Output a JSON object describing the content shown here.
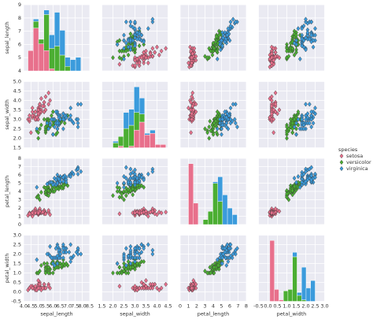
{
  "chart_data": {
    "type": "pairplot",
    "legend_title": "species",
    "variables": [
      {
        "name": "sepal_length",
        "xlim": [
          4,
          8.5
        ],
        "xticks": [
          {
            "value": 4,
            "label": "4.0"
          },
          4.5,
          {
            "value": 5,
            "label": "5.0"
          },
          5.5,
          {
            "value": 6,
            "label": "6.0"
          },
          6.5,
          {
            "value": 7,
            "label": "7.0"
          },
          7.5,
          {
            "value": 8,
            "label": "8.0"
          },
          8.5
        ],
        "ylim": [
          4,
          9
        ],
        "yticks": [
          4,
          5,
          6,
          7,
          8,
          9
        ],
        "bins": [
          4.3,
          4.66,
          5.02,
          5.38,
          5.74,
          6.1,
          6.46,
          6.82,
          7.18,
          7.54,
          7.9
        ]
      },
      {
        "name": "sepal_width",
        "xlim": [
          1.5,
          4.5
        ],
        "xticks": [
          1.5,
          {
            "value": 2,
            "label": "2.0"
          },
          2.5,
          {
            "value": 3,
            "label": "3.0"
          },
          3.5,
          {
            "value": 4,
            "label": "4.0"
          },
          4.5
        ],
        "ylim": [
          1.5,
          5
        ],
        "yticks": [
          1.5,
          {
            "value": 2,
            "label": "2.0"
          },
          2.5,
          {
            "value": 3,
            "label": "3.0"
          },
          3.5,
          {
            "value": 4,
            "label": "4.0"
          },
          4.5,
          {
            "value": 5,
            "label": "5.0"
          }
        ],
        "bins": [
          2.0,
          2.24,
          2.48,
          2.72,
          2.96,
          3.2,
          3.44,
          3.68,
          3.92,
          4.16,
          4.4
        ]
      },
      {
        "name": "petal_length",
        "xlim": [
          0,
          8
        ],
        "xticks": [
          0,
          1,
          2,
          3,
          4,
          5,
          6,
          7,
          8
        ],
        "ylim": [
          0,
          8
        ],
        "yticks": [
          0,
          1,
          2,
          3,
          4,
          5,
          6,
          7,
          8
        ],
        "bins": [
          1.0,
          1.59,
          2.18,
          2.77,
          3.36,
          3.95,
          4.54,
          5.13,
          5.72,
          6.31,
          6.9
        ]
      },
      {
        "name": "petal_width",
        "xlim": [
          -0.5,
          3
        ],
        "xticks": [
          -0.5,
          {
            "value": 0,
            "label": "0.0"
          },
          0.5,
          {
            "value": 1,
            "label": "1.0"
          },
          1.5,
          {
            "value": 2,
            "label": "2.0"
          },
          2.5,
          {
            "value": 3,
            "label": "3.0"
          }
        ],
        "ylim": [
          -0.5,
          3
        ],
        "yticks": [
          -0.5,
          {
            "value": 0,
            "label": "0.0"
          },
          0.5,
          {
            "value": 1,
            "label": "1.0"
          },
          1.5,
          {
            "value": 2,
            "label": "2.0"
          },
          2.5,
          {
            "value": 3,
            "label": "3.0"
          }
        ],
        "bins": [
          0.1,
          0.34,
          0.58,
          0.82,
          1.06,
          1.3,
          1.54,
          1.78,
          2.02,
          2.26,
          2.5
        ]
      }
    ],
    "series": [
      {
        "name": "setosa",
        "color": "#e8708c",
        "values": [
          [
            5.1,
            4.9,
            4.7,
            4.6,
            5.0,
            5.4,
            4.6,
            5.0,
            4.4,
            4.9,
            5.4,
            4.8,
            4.8,
            4.3,
            5.8,
            5.7,
            5.4,
            5.1,
            5.7,
            5.1,
            5.4,
            5.1,
            4.6,
            5.1,
            4.8,
            5.0,
            5.0,
            5.2,
            5.2,
            4.7,
            4.8,
            5.4,
            5.2,
            5.5,
            4.9,
            5.0,
            5.5,
            4.9,
            4.4,
            5.1,
            5.0,
            4.5,
            4.4,
            5.0,
            5.1,
            4.8,
            5.1,
            4.6,
            5.3,
            5.0
          ],
          [
            3.5,
            3.0,
            3.2,
            3.1,
            3.6,
            3.9,
            3.4,
            3.4,
            2.9,
            3.1,
            3.7,
            3.4,
            3.0,
            3.0,
            4.0,
            4.4,
            3.9,
            3.5,
            3.8,
            3.8,
            3.4,
            3.7,
            3.6,
            3.3,
            3.4,
            3.0,
            3.4,
            3.5,
            3.4,
            3.2,
            3.1,
            3.4,
            4.1,
            4.2,
            3.1,
            3.2,
            3.5,
            3.1,
            3.0,
            3.4,
            3.5,
            2.3,
            3.2,
            3.5,
            3.8,
            3.0,
            3.8,
            3.2,
            3.7,
            3.3
          ],
          [
            1.4,
            1.4,
            1.3,
            1.5,
            1.4,
            1.7,
            1.4,
            1.5,
            1.4,
            1.5,
            1.5,
            1.6,
            1.4,
            1.1,
            1.2,
            1.5,
            1.3,
            1.4,
            1.7,
            1.5,
            1.7,
            1.5,
            1.0,
            1.7,
            1.9,
            1.6,
            1.6,
            1.5,
            1.4,
            1.6,
            1.6,
            1.5,
            1.5,
            1.4,
            1.5,
            1.2,
            1.3,
            1.5,
            1.3,
            1.5,
            1.3,
            1.3,
            1.3,
            1.6,
            1.9,
            1.4,
            1.6,
            1.4,
            1.5,
            1.4
          ],
          [
            0.2,
            0.2,
            0.2,
            0.2,
            0.2,
            0.4,
            0.3,
            0.2,
            0.2,
            0.1,
            0.2,
            0.2,
            0.1,
            0.1,
            0.2,
            0.4,
            0.4,
            0.3,
            0.3,
            0.3,
            0.2,
            0.4,
            0.2,
            0.5,
            0.2,
            0.2,
            0.4,
            0.2,
            0.2,
            0.2,
            0.2,
            0.4,
            0.1,
            0.2,
            0.1,
            0.2,
            0.2,
            0.1,
            0.2,
            0.2,
            0.3,
            0.3,
            0.2,
            0.6,
            0.4,
            0.3,
            0.2,
            0.2,
            0.2,
            0.2
          ]
        ],
        "hist": [
          [
            9,
            19,
            12,
            9,
            1,
            0,
            0,
            0,
            0,
            0
          ],
          [
            0,
            1,
            0,
            1,
            11,
            16,
            8,
            9,
            2,
            2
          ],
          [
            37,
            13,
            0,
            0,
            0,
            0,
            0,
            0,
            0,
            0
          ],
          [
            41,
            8,
            1,
            0,
            0,
            0,
            0,
            0,
            0,
            0
          ]
        ]
      },
      {
        "name": "versicolor",
        "color": "#4bae32",
        "values": [
          [
            7.0,
            6.4,
            6.9,
            5.5,
            6.5,
            5.7,
            6.3,
            4.9,
            6.6,
            5.2,
            5.0,
            5.9,
            6.0,
            6.1,
            5.6,
            6.7,
            5.6,
            5.8,
            6.2,
            5.6,
            5.9,
            6.1,
            6.3,
            6.1,
            6.4,
            6.6,
            6.8,
            6.7,
            6.0,
            5.7,
            5.5,
            5.5,
            5.8,
            6.0,
            5.4,
            6.0,
            6.7,
            6.3,
            5.6,
            5.5,
            5.5,
            6.1,
            5.8,
            5.0,
            5.6,
            5.7,
            5.7,
            6.2,
            5.1,
            5.7
          ],
          [
            3.2,
            3.2,
            3.1,
            2.3,
            2.8,
            2.8,
            3.3,
            2.4,
            2.9,
            2.7,
            2.0,
            3.0,
            2.2,
            2.9,
            2.9,
            3.1,
            3.0,
            2.7,
            2.2,
            2.5,
            3.2,
            2.8,
            2.5,
            2.8,
            2.9,
            3.0,
            2.8,
            3.0,
            2.9,
            2.6,
            2.4,
            2.4,
            2.7,
            2.7,
            3.0,
            3.4,
            3.1,
            2.3,
            3.0,
            2.5,
            2.6,
            3.0,
            2.6,
            2.3,
            2.7,
            3.0,
            2.9,
            2.9,
            2.5,
            2.8
          ],
          [
            4.7,
            4.5,
            4.9,
            4.0,
            4.6,
            4.5,
            4.7,
            3.3,
            4.6,
            3.9,
            3.5,
            4.2,
            4.0,
            4.7,
            3.6,
            4.4,
            4.5,
            4.1,
            4.5,
            3.9,
            4.8,
            4.0,
            4.9,
            4.7,
            4.3,
            4.4,
            4.8,
            5.0,
            4.5,
            3.5,
            3.8,
            3.7,
            3.9,
            5.1,
            4.5,
            4.5,
            4.7,
            4.4,
            4.1,
            4.0,
            4.4,
            4.6,
            4.0,
            3.3,
            4.2,
            4.2,
            4.2,
            4.3,
            3.0,
            4.1
          ],
          [
            1.4,
            1.5,
            1.5,
            1.3,
            1.5,
            1.3,
            1.6,
            1.0,
            1.3,
            1.4,
            1.0,
            1.5,
            1.0,
            1.4,
            1.3,
            1.4,
            1.5,
            1.0,
            1.5,
            1.1,
            1.8,
            1.3,
            1.5,
            1.2,
            1.3,
            1.4,
            1.4,
            1.7,
            1.5,
            1.0,
            1.1,
            1.0,
            1.2,
            1.6,
            1.5,
            1.6,
            1.5,
            1.3,
            1.3,
            1.3,
            1.2,
            1.4,
            1.2,
            1.0,
            1.3,
            1.2,
            1.3,
            1.3,
            1.1,
            1.3
          ]
        ],
        "hist": [
          [
            0,
            3,
            2,
            16,
            9,
            11,
            7,
            2,
            0,
            0
          ],
          [
            3,
            6,
            12,
            13,
            11,
            5,
            0,
            0,
            0,
            0
          ],
          [
            0,
            0,
            0,
            3,
            8,
            25,
            14,
            0,
            0,
            0
          ],
          [
            0,
            0,
            0,
            7,
            8,
            30,
            4,
            1,
            0,
            0
          ]
        ]
      },
      {
        "name": "virginica",
        "color": "#3b9bdc",
        "values": [
          [
            6.3,
            5.8,
            7.1,
            6.3,
            6.5,
            7.6,
            4.9,
            7.3,
            6.7,
            7.2,
            6.5,
            6.4,
            6.8,
            5.7,
            5.8,
            6.4,
            6.5,
            7.7,
            7.7,
            6.0,
            6.9,
            5.6,
            7.7,
            6.3,
            6.7,
            7.2,
            6.2,
            6.1,
            6.4,
            7.2,
            7.4,
            7.9,
            6.4,
            6.3,
            6.1,
            7.7,
            6.3,
            6.4,
            6.0,
            6.9,
            6.7,
            6.9,
            5.8,
            6.8,
            6.7,
            6.7,
            6.3,
            6.5,
            6.2,
            5.9
          ],
          [
            3.3,
            2.7,
            3.0,
            2.9,
            3.0,
            3.0,
            2.5,
            2.9,
            2.5,
            3.6,
            3.2,
            2.7,
            3.0,
            2.5,
            2.8,
            3.2,
            3.0,
            3.8,
            2.6,
            2.2,
            3.2,
            2.8,
            2.8,
            2.7,
            3.3,
            3.2,
            2.8,
            3.0,
            2.8,
            3.0,
            2.8,
            3.8,
            2.8,
            2.8,
            2.6,
            3.0,
            3.4,
            3.1,
            3.0,
            3.1,
            3.1,
            3.1,
            2.7,
            3.2,
            3.3,
            3.0,
            2.5,
            3.0,
            3.4,
            3.0
          ],
          [
            6.0,
            5.1,
            5.9,
            5.6,
            5.8,
            6.6,
            4.5,
            6.3,
            5.8,
            6.1,
            5.1,
            5.3,
            5.5,
            5.0,
            5.1,
            5.3,
            5.5,
            6.7,
            6.9,
            5.0,
            5.7,
            4.9,
            6.7,
            4.9,
            5.7,
            6.0,
            4.8,
            4.9,
            5.6,
            5.8,
            6.1,
            6.4,
            5.6,
            5.1,
            5.6,
            6.1,
            5.6,
            5.5,
            4.8,
            5.4,
            5.6,
            5.1,
            5.1,
            5.9,
            5.7,
            5.2,
            5.0,
            5.2,
            5.4,
            5.1
          ],
          [
            2.5,
            1.9,
            2.1,
            1.8,
            2.2,
            2.1,
            1.7,
            1.8,
            1.8,
            2.5,
            2.0,
            1.9,
            2.1,
            2.0,
            2.4,
            2.3,
            1.8,
            2.2,
            2.3,
            1.5,
            2.3,
            2.0,
            2.0,
            1.8,
            2.1,
            1.8,
            1.8,
            1.8,
            2.1,
            1.6,
            1.9,
            2.0,
            2.2,
            1.5,
            1.4,
            2.3,
            2.4,
            1.8,
            1.8,
            2.1,
            2.4,
            2.3,
            1.9,
            2.3,
            2.5,
            2.3,
            1.9,
            2.0,
            2.3,
            1.8
          ]
        ],
        "hist": [
          [
            0,
            1,
            0,
            2,
            6,
            15,
            11,
            4,
            5,
            6
          ],
          [
            1,
            0,
            10,
            10,
            16,
            10,
            1,
            2,
            0,
            0
          ],
          [
            0,
            0,
            0,
            0,
            0,
            1,
            15,
            18,
            10,
            6
          ],
          [
            0,
            0,
            0,
            0,
            0,
            3,
            2,
            22,
            9,
            14
          ]
        ]
      }
    ]
  }
}
